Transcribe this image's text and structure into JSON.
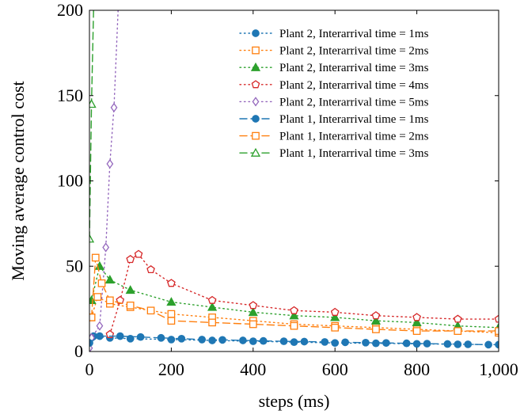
{
  "chart_data": {
    "type": "line",
    "xlabel": "steps (ms)",
    "ylabel": "Moving average control cost",
    "xlim": [
      0,
      1000
    ],
    "ylim": [
      0,
      200
    ],
    "x_ticks": [
      0,
      200,
      400,
      600,
      800,
      1000
    ],
    "x_tick_labels": [
      "0",
      "200",
      "400",
      "600",
      "800",
      "1,000"
    ],
    "y_ticks": [
      0,
      50,
      100,
      150,
      200
    ],
    "y_tick_labels": [
      "0",
      "50",
      "100",
      "150",
      "200"
    ],
    "grid": false,
    "legend_position": "top-right",
    "series": [
      {
        "name": "Plant 2, Interarrival time = 1ms",
        "color": "#1f77b4",
        "line_style": "dotted",
        "marker": "circle-filled",
        "x": [
          10,
          50,
          100,
          200,
          300,
          400,
          500,
          600,
          700,
          800,
          900,
          1000
        ],
        "y": [
          9,
          8,
          7.5,
          7,
          6.5,
          6,
          5.5,
          5,
          4.8,
          4.5,
          4.2,
          4
        ]
      },
      {
        "name": "Plant 2, Interarrival time = 2ms",
        "color": "#ff7f0e",
        "line_style": "dotted",
        "marker": "square-open",
        "x": [
          5,
          20,
          50,
          100,
          200,
          300,
          400,
          500,
          600,
          700,
          800,
          900,
          1000
        ],
        "y": [
          20,
          32,
          28,
          26,
          22,
          20,
          18,
          16,
          15,
          14,
          13,
          12,
          11
        ]
      },
      {
        "name": "Plant 2, Interarrival time = 3ms",
        "color": "#2ca02c",
        "line_style": "dotted",
        "marker": "triangle-filled",
        "x": [
          5,
          25,
          50,
          100,
          200,
          300,
          400,
          500,
          600,
          700,
          800,
          900,
          1000
        ],
        "y": [
          30,
          50,
          42,
          36,
          29,
          26,
          23,
          21,
          20,
          18,
          17,
          15,
          14
        ]
      },
      {
        "name": "Plant 2, Interarrival time = 4ms",
        "color": "#d62728",
        "line_style": "dotted",
        "marker": "pentagon-open",
        "x": [
          50,
          75,
          100,
          120,
          150,
          200,
          300,
          400,
          500,
          600,
          700,
          800,
          900,
          1000
        ],
        "y": [
          10,
          30,
          54,
          57,
          48,
          40,
          30,
          27,
          24,
          23,
          21,
          20,
          19,
          19
        ]
      },
      {
        "name": "Plant 2, Interarrival time = 5ms",
        "color": "#9467bd",
        "line_style": "dotted",
        "marker": "diamond-open",
        "x": [
          0,
          5,
          25,
          40,
          50,
          60,
          70
        ],
        "y": [
          2,
          8,
          15,
          61,
          110,
          143,
          200
        ]
      },
      {
        "name": "Plant 1, Interarrival time = 1ms",
        "color": "#1f77b4",
        "line_style": "dashed",
        "marker": "circle-filled",
        "x": [
          0,
          25,
          75,
          125,
          175,
          225,
          275,
          325,
          375,
          425,
          475,
          525,
          575,
          625,
          675,
          725,
          775,
          825,
          875,
          925,
          975
        ],
        "y": [
          5,
          9,
          9,
          8.5,
          8,
          7.5,
          7,
          6.8,
          6.5,
          6.2,
          6,
          5.8,
          5.6,
          5.4,
          5.2,
          5,
          4.8,
          4.6,
          4.4,
          4.2,
          4
        ]
      },
      {
        "name": "Plant 1, Interarrival time = 2ms",
        "color": "#ff7f0e",
        "line_style": "dashed",
        "marker": "square-open",
        "x": [
          5,
          15,
          30,
          50,
          100,
          150,
          200,
          300,
          400,
          500,
          600,
          700,
          800,
          900,
          1000
        ],
        "y": [
          20,
          55,
          40,
          30,
          27,
          24,
          18,
          17,
          16,
          15,
          14,
          13,
          12,
          12,
          12
        ]
      },
      {
        "name": "Plant 1, Interarrival time = 3ms",
        "color": "#2ca02c",
        "line_style": "dashed",
        "marker": "triangle-open",
        "x": [
          0,
          5,
          10,
          15
        ],
        "y": [
          66,
          145,
          200,
          200
        ]
      }
    ]
  }
}
